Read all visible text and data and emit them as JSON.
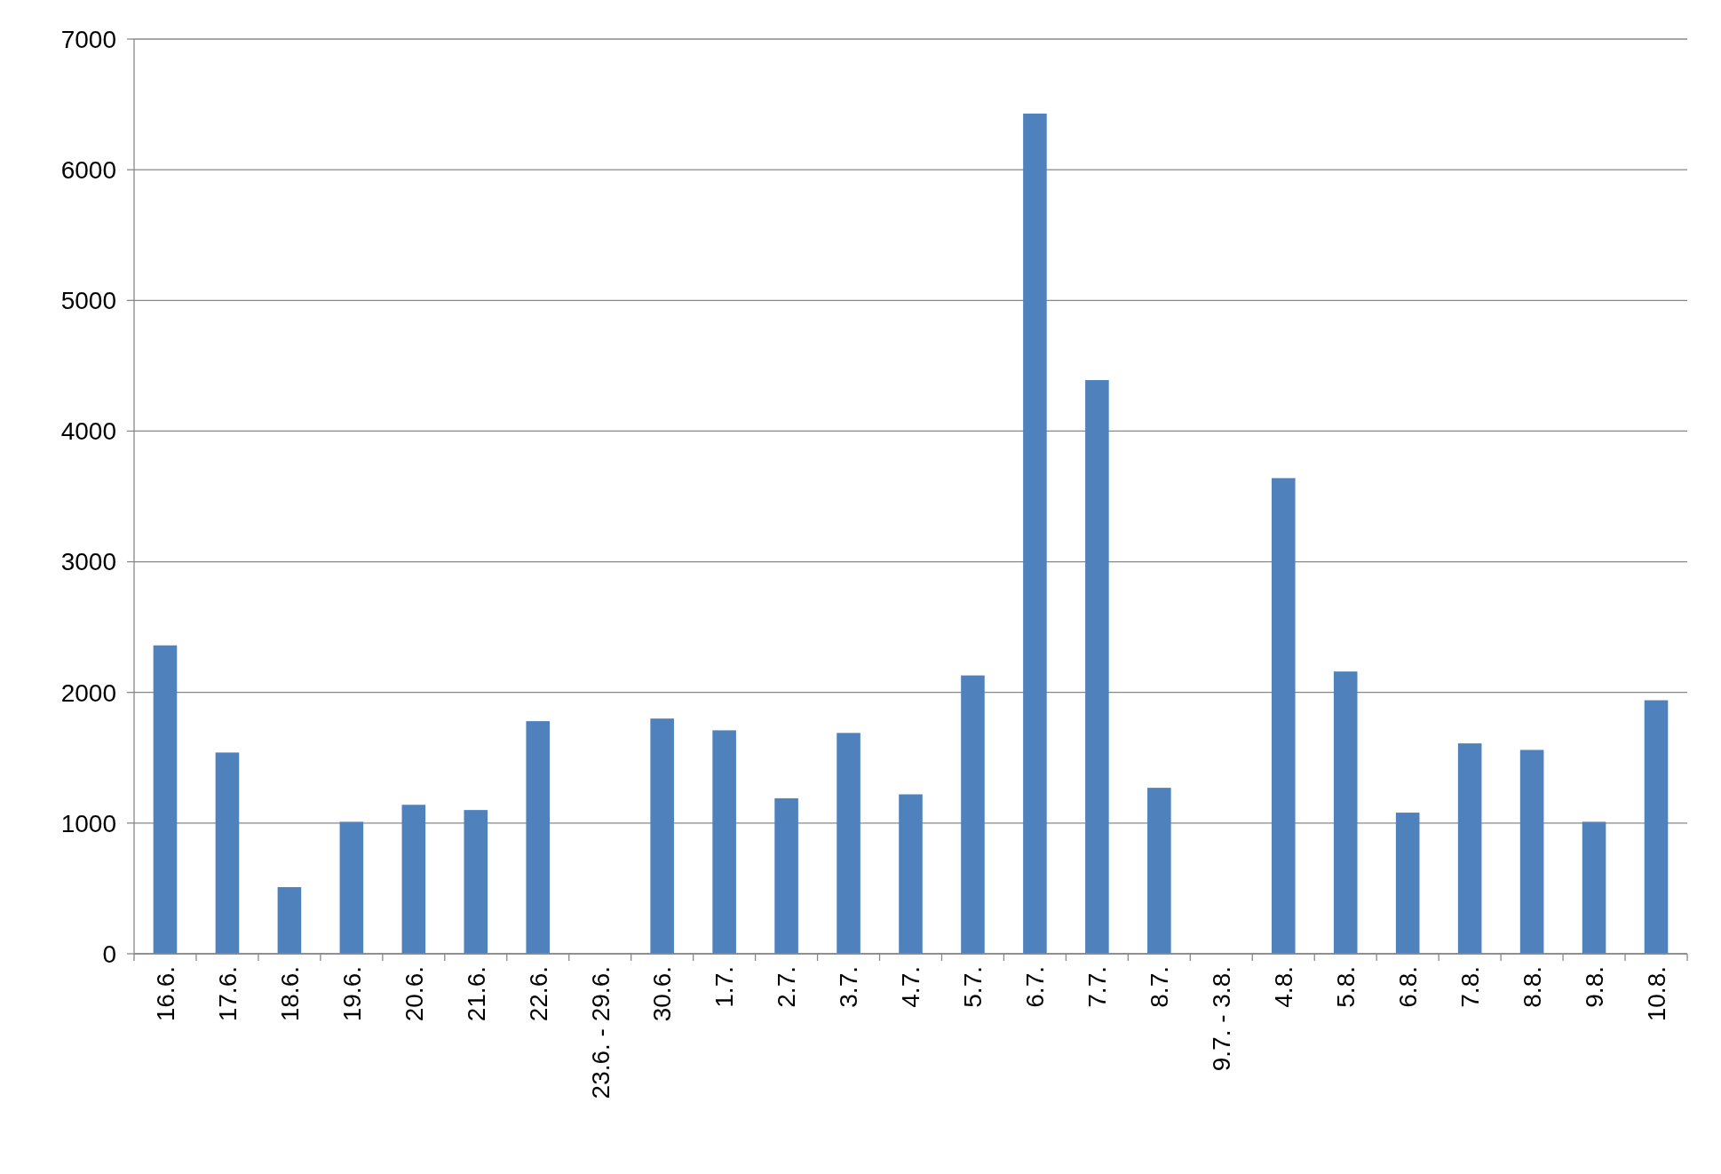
{
  "chart_data": {
    "type": "bar",
    "categories": [
      "16.6.",
      "17.6.",
      "18.6.",
      "19.6.",
      "20.6.",
      "21.6.",
      "22.6.",
      "23.6. - 29.6.",
      "30.6.",
      "1.7.",
      "2.7.",
      "3.7.",
      "4.7.",
      "5.7.",
      "6.7.",
      "7.7.",
      "8.7.",
      "9.7. - 3.8.",
      "4.8.",
      "5.8.",
      "6.8.",
      "7.8.",
      "8.8.",
      "9.8.",
      "10.8."
    ],
    "values": [
      2360,
      1540,
      510,
      1010,
      1140,
      1100,
      1780,
      null,
      1800,
      1710,
      1190,
      1690,
      1220,
      2130,
      6430,
      4390,
      1270,
      null,
      3640,
      2160,
      1080,
      1610,
      1560,
      1010,
      1940
    ],
    "color": "#4f81bd",
    "ylim": [
      0,
      7000
    ],
    "yticks": [
      0,
      1000,
      2000,
      3000,
      4000,
      5000,
      6000,
      7000
    ],
    "grid": "y"
  }
}
